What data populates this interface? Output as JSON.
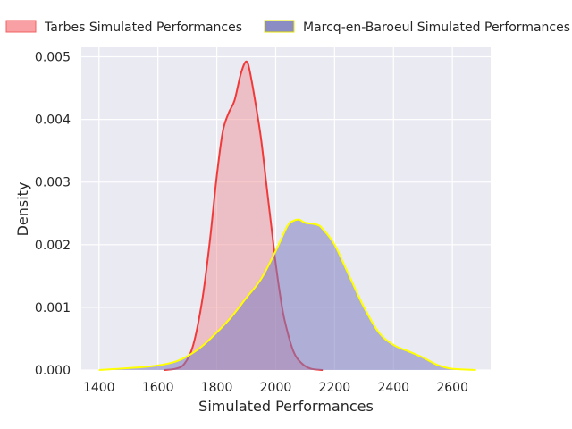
{
  "chart_data": {
    "type": "area",
    "title": "",
    "xlabel": "Simulated Performances",
    "ylabel": "Density",
    "xlim": [
      1340,
      2730
    ],
    "ylim": [
      0,
      0.00515
    ],
    "xticks": [
      1400,
      1600,
      1800,
      2000,
      2200,
      2400,
      2600
    ],
    "yticks": [
      0.0,
      0.001,
      0.002,
      0.003,
      0.004,
      0.005
    ],
    "ytick_labels": [
      "0.000",
      "0.001",
      "0.002",
      "0.003",
      "0.004",
      "0.005"
    ],
    "grid": true,
    "legend_position": "top",
    "series": [
      {
        "name": "Tarbes Simulated Performances",
        "line_color": "#f03a3a",
        "fill_color": "#f08a8f",
        "fill_opacity": 0.45,
        "x": [
          1620,
          1660,
          1690,
          1720,
          1750,
          1775,
          1800,
          1820,
          1840,
          1860,
          1880,
          1895,
          1905,
          1915,
          1930,
          1950,
          1970,
          1990,
          2000,
          2015,
          2030,
          2060,
          2090,
          2120,
          2160
        ],
        "y": [
          0,
          2e-05,
          0.0001,
          0.0004,
          0.0011,
          0.002,
          0.0031,
          0.0038,
          0.0041,
          0.0043,
          0.0047,
          0.0049,
          0.0049,
          0.0047,
          0.0043,
          0.0037,
          0.0029,
          0.0021,
          0.0017,
          0.0012,
          0.0008,
          0.0003,
          0.0001,
          2e-05,
          0
        ]
      },
      {
        "name": "Marcq-en-Baroeul Simulated Performances",
        "line_color": "#ffff00",
        "fill_color": "#7c7cc0",
        "fill_opacity": 0.55,
        "x": [
          1400,
          1500,
          1580,
          1650,
          1700,
          1750,
          1800,
          1850,
          1900,
          1950,
          2000,
          2040,
          2060,
          2080,
          2100,
          2140,
          2160,
          2200,
          2250,
          2300,
          2350,
          2400,
          2450,
          2500,
          2550,
          2600,
          2680
        ],
        "y": [
          0,
          3e-05,
          6e-05,
          0.00012,
          0.00022,
          0.00038,
          0.0006,
          0.00085,
          0.00115,
          0.00145,
          0.0019,
          0.0023,
          0.00238,
          0.0024,
          0.00235,
          0.00232,
          0.00225,
          0.002,
          0.0015,
          0.001,
          0.0006,
          0.0004,
          0.0003,
          0.0002,
          8e-05,
          2e-05,
          0
        ]
      }
    ]
  }
}
